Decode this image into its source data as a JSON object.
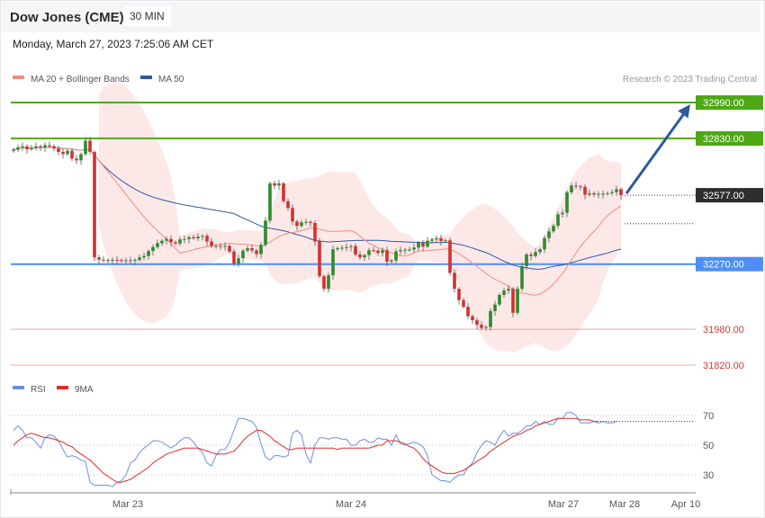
{
  "header": {
    "title": "Dow Jones (CME)",
    "timeframe": "30 MIN",
    "datetime": "Monday, March 27, 2023 7:25:06 AM CET"
  },
  "legend": {
    "ma20_label": "MA 20 + Bollinger Bands",
    "ma50_label": "MA 50",
    "credit": "Research © 2023 Trading Central",
    "rsi_label": "RSI",
    "ma9_label": "9MA"
  },
  "colors": {
    "ma20": "#f28b82",
    "ma50": "#2c5aa0",
    "bands": "#fde8e8",
    "resistance": "#4ea814",
    "support": "#4f8ef7",
    "target_red": "#f2a0a0",
    "candle": "#2e8b2e",
    "candle_down": "#d43030",
    "rsi": "#6b8fe0",
    "ma9": "#e32b2b",
    "arrow": "#2c5aa0",
    "price_tag": "#2e2e2e"
  },
  "chart_data": [
    {
      "type": "candlestick",
      "title": "Dow Jones (CME)",
      "ylim": [
        31720,
        33050
      ],
      "x_ticks": [
        "Mar 23",
        "Mar 24",
        "Mar 27",
        "Mar 28",
        "Apr 10"
      ],
      "levels": [
        {
          "value": 32990,
          "label": "32990.00",
          "kind": "resistance"
        },
        {
          "value": 32830,
          "label": "32830.00",
          "kind": "resistance"
        },
        {
          "value": 32270,
          "label": "32270.00",
          "kind": "support"
        },
        {
          "value": 31980,
          "label": "31980.00",
          "kind": "target"
        },
        {
          "value": 31820,
          "label": "31820.00",
          "kind": "target"
        }
      ],
      "last_price": {
        "value": 32577,
        "label": "32577.00"
      },
      "ma50_extension_value": 32450,
      "forecast_target": 32990,
      "close": [
        32780,
        32790,
        32795,
        32782,
        32788,
        32795,
        32790,
        32800,
        32795,
        32785,
        32770,
        32760,
        32775,
        32740,
        32732,
        32760,
        32820,
        32770,
        32300,
        32290,
        32286,
        32288,
        32289,
        32288,
        32285,
        32287,
        32286,
        32289,
        32300,
        32306,
        32328,
        32346,
        32363,
        32374,
        32382,
        32368,
        32362,
        32380,
        32382,
        32390,
        32385,
        32392,
        32396,
        32371,
        32350,
        32351,
        32350,
        32351,
        32326,
        32273,
        32296,
        32330,
        32341,
        32331,
        32315,
        32356,
        32464,
        32630,
        32620,
        32630,
        32550,
        32520,
        32460,
        32440,
        32456,
        32458,
        32453,
        32371,
        32216,
        32160,
        32220,
        32336,
        32341,
        32343,
        32346,
        32350,
        32313,
        32300,
        32310,
        32332,
        32330,
        32320,
        32332,
        32281,
        32286,
        32327,
        32332,
        32334,
        32335,
        32344,
        32365,
        32348,
        32374,
        32380,
        32385,
        32373,
        32376,
        32231,
        32160,
        32110,
        32080,
        32038,
        32020,
        32000,
        31986,
        31990,
        32061,
        32090,
        32133,
        32152,
        32160,
        32053,
        32160,
        32261,
        32313,
        32306,
        32324,
        32336,
        32386,
        32416,
        32441,
        32492,
        32499,
        32590,
        32620,
        32616,
        32614,
        32579,
        32586,
        32580,
        32583,
        32583,
        32586,
        32591,
        32604,
        32577
      ],
      "rsi": {
        "ylim": [
          20,
          80
        ],
        "ticks": [
          70,
          50,
          30
        ],
        "values": [
          60,
          63,
          60,
          55,
          55,
          52,
          48,
          55,
          57,
          56,
          53,
          47,
          42,
          43,
          42,
          40,
          39,
          25,
          23,
          23,
          23,
          23,
          22,
          25,
          26,
          30,
          38,
          40,
          45,
          48,
          50,
          53,
          53,
          52,
          50,
          48,
          50,
          53,
          55,
          55,
          52,
          48,
          45,
          38,
          36,
          43,
          47,
          47,
          52,
          60,
          68,
          68,
          67,
          66,
          62,
          51,
          42,
          40,
          43,
          43,
          42,
          43,
          58,
          60,
          57,
          44,
          38,
          50,
          55,
          55,
          54,
          55,
          55,
          54,
          54,
          50,
          50,
          53,
          54,
          52,
          52,
          55,
          54,
          54,
          50,
          57,
          51,
          50,
          51,
          52,
          51,
          49,
          43,
          30,
          28,
          26,
          26,
          25,
          28,
          30,
          30,
          35,
          38,
          45,
          50,
          53,
          52,
          50,
          56,
          60,
          56,
          58,
          58,
          60,
          63,
          63,
          66,
          64,
          66,
          64,
          64,
          68,
          68,
          72,
          72,
          70,
          65,
          65,
          65,
          66,
          65,
          66,
          65,
          65,
          66
        ]
      },
      "ma9": {
        "values": [
          50,
          53,
          55,
          57,
          58,
          57,
          56,
          55,
          55,
          54,
          53,
          52,
          50,
          49,
          46,
          44,
          42,
          40,
          37,
          34,
          31,
          29,
          27,
          25,
          25,
          26,
          27,
          29,
          31,
          33,
          35,
          38,
          40,
          42,
          44,
          45,
          46,
          47,
          48,
          48,
          48,
          48,
          47,
          46,
          45,
          44,
          44,
          44,
          45,
          46,
          49,
          53,
          56,
          58,
          60,
          60,
          58,
          56,
          53,
          51,
          49,
          47,
          47,
          48,
          48,
          48,
          48,
          48,
          48,
          48,
          48,
          48,
          47,
          48,
          48,
          48,
          48,
          48,
          48,
          48,
          49,
          50,
          50,
          53,
          53,
          53,
          52,
          51,
          49,
          48,
          45,
          41,
          38,
          36,
          34,
          32,
          31,
          31,
          31,
          32,
          33,
          35,
          37,
          39,
          41,
          43,
          46,
          48,
          50,
          52,
          54,
          56,
          57,
          58,
          60,
          61,
          63,
          64,
          65,
          66,
          67,
          68,
          68,
          68,
          68,
          68,
          67,
          67,
          67,
          66,
          66
        ]
      },
      "ma9_extension_value": 66
    }
  ]
}
